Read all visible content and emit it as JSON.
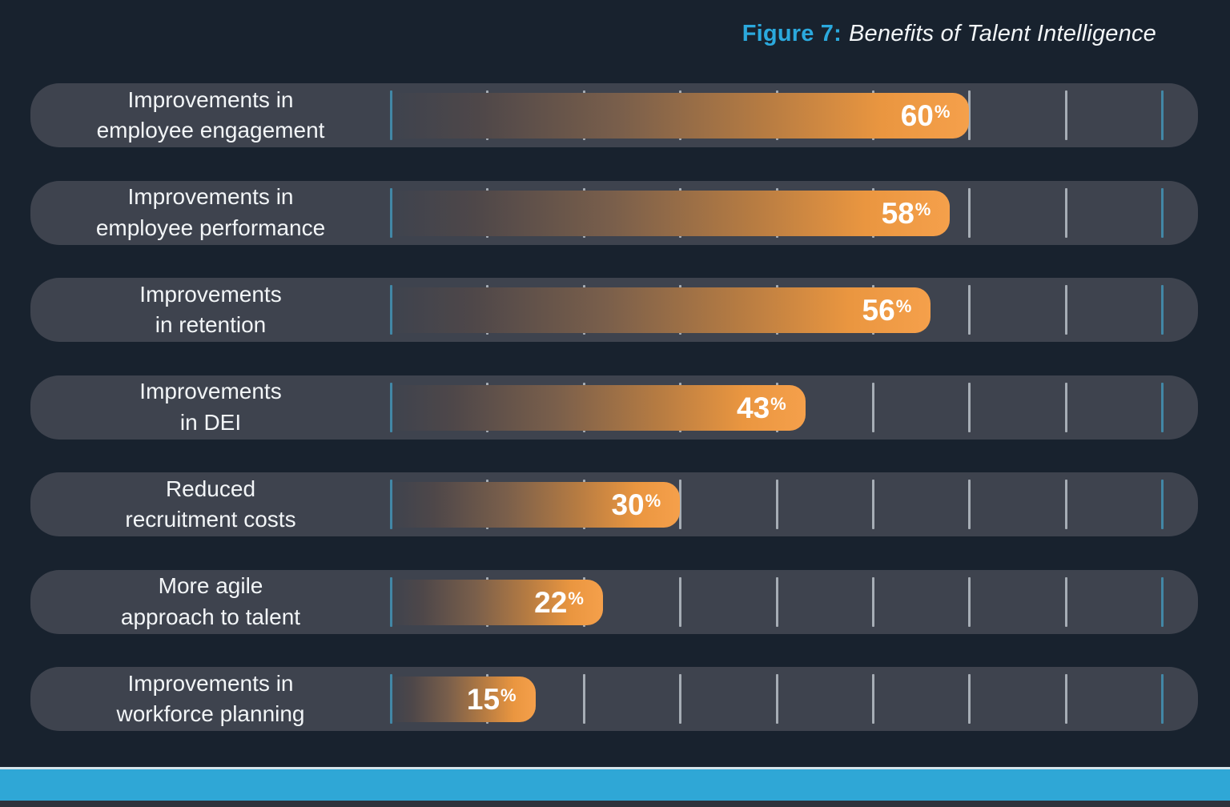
{
  "title": {
    "prefix": "Figure 7:",
    "text": "Benefits of Talent Intelligence"
  },
  "chart_data": {
    "type": "bar",
    "orientation": "horizontal",
    "title": "Figure 7: Benefits of Talent Intelligence",
    "categories": [
      "Improvements in\nemployee engagement",
      "Improvements in\nemployee performance",
      "Improvements\nin retention",
      "Improvements\nin DEI",
      "Reduced\nrecruitment costs",
      "More agile\napproach to talent",
      "Improvements in\nworkforce planning"
    ],
    "values": [
      60,
      58,
      56,
      43,
      30,
      22,
      15
    ],
    "value_labels": [
      "60%",
      "58%",
      "56%",
      "43%",
      "30%",
      "22%",
      "15%"
    ],
    "unit": "%",
    "xlabel": "",
    "ylabel": "",
    "xlim": [
      0,
      83.8
    ],
    "ticks_percent": [
      0,
      10,
      20,
      30,
      40,
      50,
      60,
      70,
      80
    ],
    "accent_tick_positions": [
      0,
      80
    ],
    "grid": "vertical tick marks every 10%; no axis labels shown",
    "legend": null,
    "colors": {
      "background": "#18222e",
      "row_background": "#3e434e",
      "bar_gradient_start": "#3e434e",
      "bar_gradient_end": "#f5a04b",
      "bar_orange": "#f29c43",
      "accent_cyan": "#2ba9dd",
      "tick_gray": "#c1c8d0",
      "tick_cyan": "#4287a6",
      "footer_bar_blue": "#2fa7d6",
      "value_text": "#ffffff",
      "label_text": "#f2f5f7"
    }
  }
}
